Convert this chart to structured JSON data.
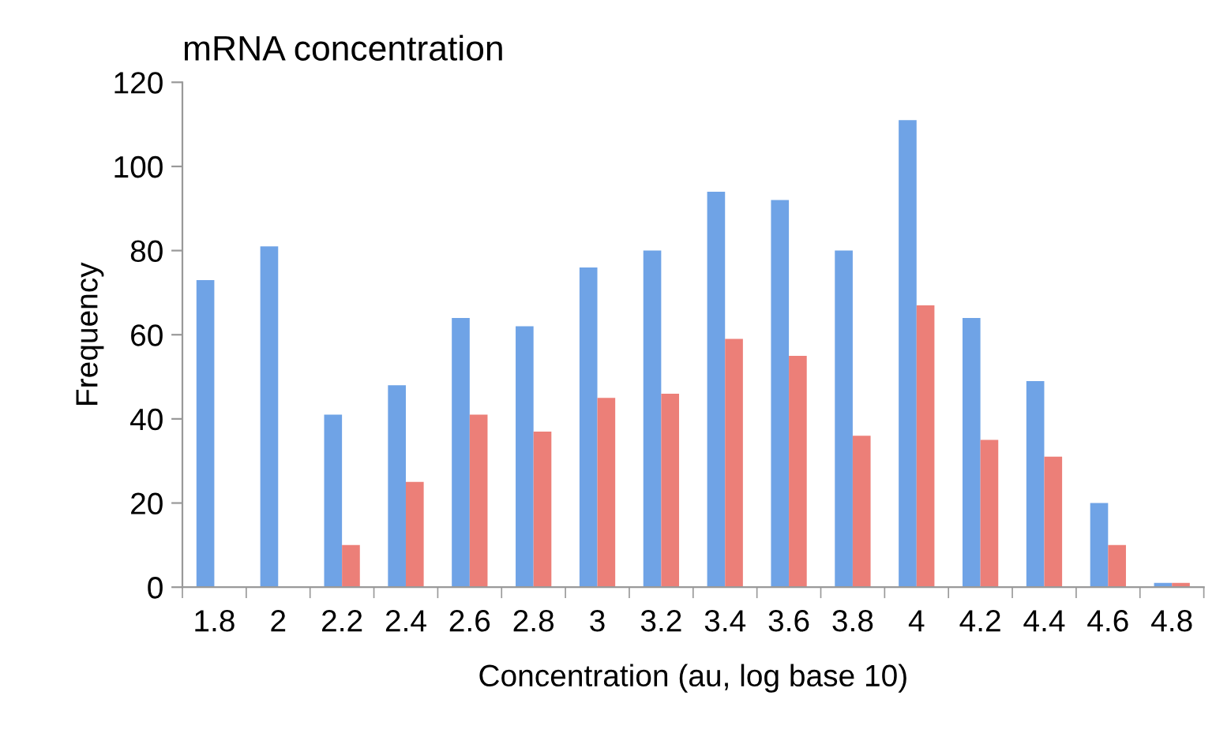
{
  "chart_data": {
    "type": "bar",
    "title": "mRNA concentration",
    "xlabel": "Concentration (au, log base 10)",
    "ylabel": "Frequency",
    "categories": [
      "1.8",
      "2",
      "2.2",
      "2.4",
      "2.6",
      "2.8",
      "3",
      "3.2",
      "3.4",
      "3.6",
      "3.8",
      "4",
      "4.2",
      "4.4",
      "4.6",
      "4.8"
    ],
    "series": [
      {
        "color": "#6fa3e6",
        "values": [
          73,
          81,
          41,
          48,
          64,
          62,
          76,
          80,
          94,
          92,
          80,
          111,
          64,
          49,
          20,
          1
        ]
      },
      {
        "color": "#ec7f78",
        "values": [
          0,
          0,
          10,
          25,
          41,
          37,
          45,
          46,
          59,
          55,
          36,
          67,
          35,
          31,
          10,
          1
        ]
      }
    ],
    "ylim": [
      0,
      120
    ],
    "yticks": [
      0,
      20,
      40,
      60,
      80,
      100,
      120
    ],
    "grid": false,
    "legend": false
  }
}
